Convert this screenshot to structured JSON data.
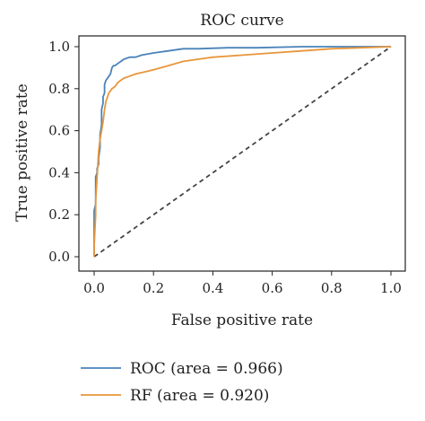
{
  "chart_data": {
    "type": "line",
    "title": "ROC curve",
    "xlabel": "False positive rate",
    "ylabel": "True positive rate",
    "xlim": [
      0.0,
      1.0
    ],
    "ylim": [
      0.0,
      1.0
    ],
    "xticks": [
      "0.0",
      "0.2",
      "0.4",
      "0.6",
      "0.8",
      "1.0"
    ],
    "yticks": [
      "0.0",
      "0.2",
      "0.4",
      "0.6",
      "0.8",
      "1.0"
    ],
    "grid": false,
    "legend_position": "below",
    "series": [
      {
        "name": "ROC (area = 0.966)",
        "color": "#4a83b8",
        "x": [
          0.0,
          0.0,
          0.005,
          0.005,
          0.01,
          0.01,
          0.015,
          0.015,
          0.02,
          0.02,
          0.025,
          0.025,
          0.03,
          0.03,
          0.035,
          0.035,
          0.04,
          0.045,
          0.05,
          0.055,
          0.06,
          0.065,
          0.07,
          0.08,
          0.09,
          0.1,
          0.12,
          0.14,
          0.16,
          0.2,
          0.25,
          0.3,
          0.35,
          0.45,
          0.55,
          0.7,
          0.85,
          1.0
        ],
        "y": [
          0.0,
          0.22,
          0.25,
          0.38,
          0.4,
          0.42,
          0.44,
          0.47,
          0.52,
          0.58,
          0.63,
          0.7,
          0.73,
          0.76,
          0.78,
          0.82,
          0.84,
          0.85,
          0.86,
          0.87,
          0.9,
          0.91,
          0.91,
          0.92,
          0.93,
          0.94,
          0.95,
          0.95,
          0.96,
          0.97,
          0.98,
          0.99,
          0.99,
          0.995,
          0.995,
          1.0,
          1.0,
          1.0
        ]
      },
      {
        "name": "RF (area = 0.920)",
        "color": "#e8963a",
        "x": [
          0.0,
          0.0,
          0.005,
          0.005,
          0.01,
          0.015,
          0.02,
          0.025,
          0.03,
          0.035,
          0.04,
          0.05,
          0.06,
          0.07,
          0.08,
          0.1,
          0.12,
          0.14,
          0.17,
          0.2,
          0.25,
          0.3,
          0.35,
          0.4,
          0.5,
          0.6,
          0.7,
          0.8,
          0.9,
          1.0
        ],
        "y": [
          0.0,
          0.05,
          0.2,
          0.27,
          0.38,
          0.5,
          0.56,
          0.6,
          0.64,
          0.7,
          0.74,
          0.78,
          0.8,
          0.81,
          0.83,
          0.85,
          0.86,
          0.87,
          0.88,
          0.89,
          0.91,
          0.93,
          0.94,
          0.95,
          0.96,
          0.97,
          0.98,
          0.99,
          0.995,
          1.0
        ]
      },
      {
        "name": "",
        "color": "#444444",
        "dashed": true,
        "x": [
          0.0,
          1.0
        ],
        "y": [
          0.0,
          1.0
        ]
      }
    ]
  }
}
